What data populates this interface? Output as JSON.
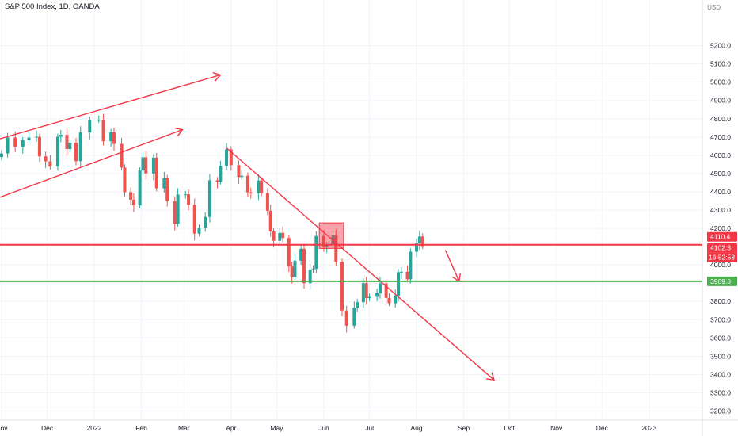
{
  "chart_data": {
    "type": "candlestick",
    "title": "S&P 500 Index, 1D, OANDA",
    "currency": "USD",
    "ylim": [
      3150,
      5450
    ],
    "y_ticks": [
      "5200.0",
      "5100.0",
      "5000.0",
      "4900.0",
      "4800.0",
      "4700.0",
      "4600.0",
      "4500.0",
      "4400.0",
      "4300.0",
      "4200.0",
      "4100.0",
      "4000.0",
      "3900.0",
      "3800.0",
      "3700.0",
      "3600.0",
      "3500.0",
      "3400.0",
      "3300.0",
      "3200.0"
    ],
    "x_ticks": [
      "Nov",
      "Dec",
      "2022",
      "Feb",
      "Mar",
      "Apr",
      "May",
      "Jun",
      "Jul",
      "Aug",
      "Sep",
      "Oct",
      "Nov",
      "Dec",
      "2023"
    ],
    "x_tick_dates": [
      "2021-11-01",
      "2021-12-01",
      "2022-01-01",
      "2022-02-01",
      "2022-03-01",
      "2022-04-01",
      "2022-05-01",
      "2022-06-01",
      "2022-07-01",
      "2022-08-01",
      "2022-09-01",
      "2022-10-01",
      "2022-11-01",
      "2022-12-01",
      "2023-01-01"
    ],
    "x_range": [
      "2021-10-31",
      "2023-02-05"
    ],
    "price_labels": {
      "resistance": "4110.4",
      "last": "4102.3",
      "countdown": "16:52:58",
      "support": "3909.8"
    },
    "colors": {
      "up": "#26a69a",
      "down": "#ef5350",
      "drawing_red": "#f23645",
      "support_green": "#4caf50",
      "grid": "#f0f3fa"
    },
    "candles": [
      {
        "date": "2021-11-01",
        "c": 4610
      },
      {
        "date": "2021-11-05",
        "c": 4697
      },
      {
        "date": "2021-11-10",
        "c": 4646
      },
      {
        "date": "2021-11-15",
        "c": 4682
      },
      {
        "date": "2021-11-19",
        "c": 4697
      },
      {
        "date": "2021-11-24",
        "c": 4701
      },
      {
        "date": "2021-11-26",
        "c": 4594
      },
      {
        "date": "2021-11-30",
        "c": 4567
      },
      {
        "date": "2021-12-03",
        "c": 4538
      },
      {
        "date": "2021-12-08",
        "c": 4701
      },
      {
        "date": "2021-12-10",
        "c": 4712
      },
      {
        "date": "2021-12-14",
        "c": 4634
      },
      {
        "date": "2021-12-16",
        "c": 4668
      },
      {
        "date": "2021-12-20",
        "c": 4568
      },
      {
        "date": "2021-12-23",
        "c": 4725
      },
      {
        "date": "2021-12-29",
        "c": 4793
      },
      {
        "date": "2022-01-04",
        "c": 4793
      },
      {
        "date": "2022-01-07",
        "c": 4677
      },
      {
        "date": "2022-01-12",
        "c": 4726
      },
      {
        "date": "2022-01-14",
        "c": 4662
      },
      {
        "date": "2022-01-19",
        "c": 4533
      },
      {
        "date": "2022-01-21",
        "c": 4398
      },
      {
        "date": "2022-01-25",
        "c": 4357
      },
      {
        "date": "2022-01-27",
        "c": 4326
      },
      {
        "date": "2022-01-31",
        "c": 4516
      },
      {
        "date": "2022-02-02",
        "c": 4589
      },
      {
        "date": "2022-02-04",
        "c": 4500
      },
      {
        "date": "2022-02-09",
        "c": 4587
      },
      {
        "date": "2022-02-11",
        "c": 4419
      },
      {
        "date": "2022-02-16",
        "c": 4475
      },
      {
        "date": "2022-02-18",
        "c": 4349
      },
      {
        "date": "2022-02-23",
        "c": 4225
      },
      {
        "date": "2022-02-25",
        "c": 4385
      },
      {
        "date": "2022-03-02",
        "c": 4386
      },
      {
        "date": "2022-03-04",
        "c": 4329
      },
      {
        "date": "2022-03-08",
        "c": 4171
      },
      {
        "date": "2022-03-11",
        "c": 4204
      },
      {
        "date": "2022-03-15",
        "c": 4262
      },
      {
        "date": "2022-03-18",
        "c": 4463
      },
      {
        "date": "2022-03-23",
        "c": 4456
      },
      {
        "date": "2022-03-25",
        "c": 4543
      },
      {
        "date": "2022-03-29",
        "c": 4632
      },
      {
        "date": "2022-04-01",
        "c": 4546
      },
      {
        "date": "2022-04-06",
        "c": 4481
      },
      {
        "date": "2022-04-08",
        "c": 4488
      },
      {
        "date": "2022-04-12",
        "c": 4397
      },
      {
        "date": "2022-04-14",
        "c": 4392
      },
      {
        "date": "2022-04-19",
        "c": 4462
      },
      {
        "date": "2022-04-21",
        "c": 4393
      },
      {
        "date": "2022-04-25",
        "c": 4296
      },
      {
        "date": "2022-04-27",
        "c": 4183
      },
      {
        "date": "2022-04-29",
        "c": 4132
      },
      {
        "date": "2022-05-03",
        "c": 4175
      },
      {
        "date": "2022-05-05",
        "c": 4147
      },
      {
        "date": "2022-05-09",
        "c": 3991
      },
      {
        "date": "2022-05-11",
        "c": 3935
      },
      {
        "date": "2022-05-13",
        "c": 4023
      },
      {
        "date": "2022-05-17",
        "c": 4088
      },
      {
        "date": "2022-05-19",
        "c": 3900
      },
      {
        "date": "2022-05-23",
        "c": 3973
      },
      {
        "date": "2022-05-25",
        "c": 3978
      },
      {
        "date": "2022-05-27",
        "c": 4158
      },
      {
        "date": "2022-06-01",
        "c": 4101
      },
      {
        "date": "2022-06-03",
        "c": 4108
      },
      {
        "date": "2022-06-07",
        "c": 4161
      },
      {
        "date": "2022-06-09",
        "c": 4017
      },
      {
        "date": "2022-06-13",
        "c": 3750
      },
      {
        "date": "2022-06-16",
        "c": 3667
      },
      {
        "date": "2022-06-21",
        "c": 3765
      },
      {
        "date": "2022-06-23",
        "c": 3796
      },
      {
        "date": "2022-06-27",
        "c": 3900
      },
      {
        "date": "2022-06-29",
        "c": 3818
      },
      {
        "date": "2022-07-01",
        "c": 3825
      },
      {
        "date": "2022-07-06",
        "c": 3845
      },
      {
        "date": "2022-07-08",
        "c": 3899
      },
      {
        "date": "2022-07-12",
        "c": 3819
      },
      {
        "date": "2022-07-14",
        "c": 3790
      },
      {
        "date": "2022-07-18",
        "c": 3831
      },
      {
        "date": "2022-07-20",
        "c": 3960
      },
      {
        "date": "2022-07-22",
        "c": 3962
      },
      {
        "date": "2022-07-26",
        "c": 3921
      },
      {
        "date": "2022-07-28",
        "c": 4072
      },
      {
        "date": "2022-08-01",
        "c": 4119
      },
      {
        "date": "2022-08-03",
        "c": 4155
      },
      {
        "date": "2022-08-05",
        "c": 4102
      }
    ],
    "drawings": {
      "resistance_level": 4110.4,
      "support_level": 3909.8,
      "channel_upper": [
        [
          "2021-10-31",
          4690
        ],
        [
          "2022-03-25",
          5040
        ]
      ],
      "channel_lower": [
        [
          "2021-10-31",
          4370
        ],
        [
          "2022-02-28",
          4740
        ]
      ],
      "downtrend_arrow": [
        [
          "2022-03-29",
          4640
        ],
        [
          "2022-09-21",
          3370
        ]
      ],
      "highlight_box": [
        [
          "2022-05-29",
          4230
        ],
        [
          "2022-06-14",
          4090
        ]
      ],
      "projection_arrow": [
        [
          "2022-08-20",
          4080
        ],
        [
          "2022-08-29",
          3910
        ]
      ]
    }
  }
}
